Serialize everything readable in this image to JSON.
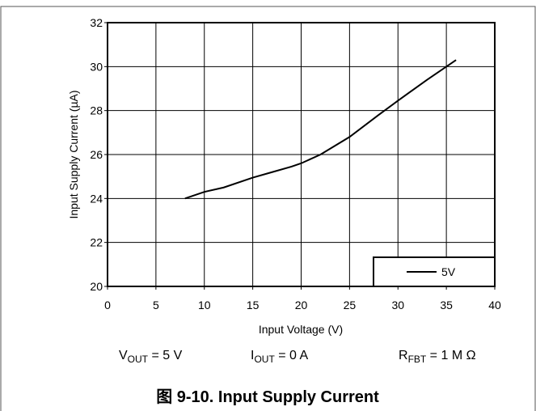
{
  "chart_data": {
    "type": "line",
    "title": "图 9-10. Input Supply Current",
    "xlabel": "Input Voltage (V)",
    "ylabel": "Input Supply Current (µA)",
    "x": [
      8,
      10,
      12,
      15,
      17,
      19,
      20,
      22,
      25,
      28,
      30,
      33,
      36
    ],
    "series": [
      {
        "name": "5V",
        "color": "#000000",
        "values": [
          24.0,
          24.3,
          24.5,
          24.95,
          25.2,
          25.45,
          25.6,
          26.0,
          26.8,
          27.8,
          28.45,
          29.4,
          30.3
        ]
      }
    ],
    "xlim": [
      0,
      40
    ],
    "xticks": [
      0,
      5,
      10,
      15,
      20,
      25,
      30,
      35,
      40
    ],
    "ylim": [
      20,
      32
    ],
    "yticks": [
      20,
      22,
      24,
      26,
      28,
      30,
      32
    ],
    "grid": true,
    "legend": "lower right",
    "captions": [
      {
        "main": "V",
        "sub": "OUT",
        "rest": " = 5 V"
      },
      {
        "main": "I",
        "sub": "OUT",
        "rest": " = 0 A"
      },
      {
        "main": "R",
        "sub": "FBT",
        "rest": " = 1 M Ω"
      }
    ]
  }
}
